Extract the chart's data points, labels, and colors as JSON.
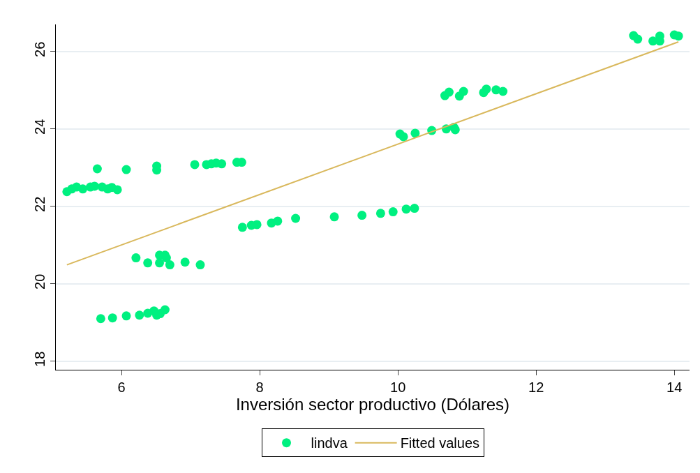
{
  "chart_data": {
    "type": "scatter",
    "xlabel": "Inversión sector productivo (Dólares)",
    "xlim": [
      5.05,
      14.22
    ],
    "xticks": [
      6,
      8,
      10,
      12,
      14
    ],
    "ylim": [
      17.78,
      26.7
    ],
    "yticks": [
      18,
      20,
      22,
      24,
      26
    ],
    "grid": "y",
    "legend": "bottom",
    "series": [
      {
        "name": "lindva",
        "color": "#00f080",
        "marker": "circle",
        "x": [
          5.21,
          5.28,
          5.35,
          5.44,
          5.55,
          5.61,
          5.72,
          5.8,
          5.86,
          5.94,
          5.65,
          6.07,
          6.51,
          6.51,
          7.06,
          7.23,
          7.3,
          7.37,
          7.45,
          7.67,
          7.74,
          6.21,
          6.38,
          6.55,
          6.55,
          6.63,
          6.65,
          6.7,
          6.92,
          7.14,
          5.7,
          5.87,
          6.07,
          6.26,
          6.38,
          6.47,
          6.51,
          6.56,
          6.63,
          7.75,
          7.88,
          7.96,
          8.17,
          8.26,
          8.52,
          9.08,
          9.48,
          9.75,
          9.93,
          10.12,
          10.24,
          10.03,
          10.08,
          10.25,
          10.49,
          10.7,
          10.81,
          10.83,
          10.68,
          10.74,
          10.89,
          10.95,
          11.24,
          11.28,
          11.42,
          11.52,
          13.41,
          13.47,
          13.69,
          13.79,
          13.79,
          14.0,
          14.06
        ],
        "values": [
          22.38,
          22.45,
          22.5,
          22.45,
          22.5,
          22.52,
          22.5,
          22.45,
          22.49,
          22.43,
          22.97,
          22.95,
          23.04,
          22.94,
          23.08,
          23.08,
          23.1,
          23.12,
          23.1,
          23.14,
          23.14,
          20.67,
          20.54,
          20.74,
          20.54,
          20.74,
          20.67,
          20.49,
          20.56,
          20.49,
          19.1,
          19.12,
          19.17,
          19.19,
          19.24,
          19.3,
          19.19,
          19.23,
          19.33,
          21.46,
          21.51,
          21.53,
          21.57,
          21.62,
          21.69,
          21.73,
          21.77,
          21.82,
          21.86,
          21.93,
          21.95,
          23.87,
          23.8,
          23.89,
          23.96,
          24.0,
          24.04,
          23.98,
          24.86,
          24.95,
          24.85,
          24.97,
          24.94,
          25.03,
          25.01,
          24.97,
          26.41,
          26.32,
          26.27,
          26.4,
          26.27,
          26.43,
          26.4
        ]
      },
      {
        "name": "Fitted values",
        "color": "#d9b85c",
        "type": "line",
        "marker": "none",
        "x": [
          5.21,
          14.06
        ],
        "values": [
          20.49,
          26.25
        ]
      }
    ]
  }
}
